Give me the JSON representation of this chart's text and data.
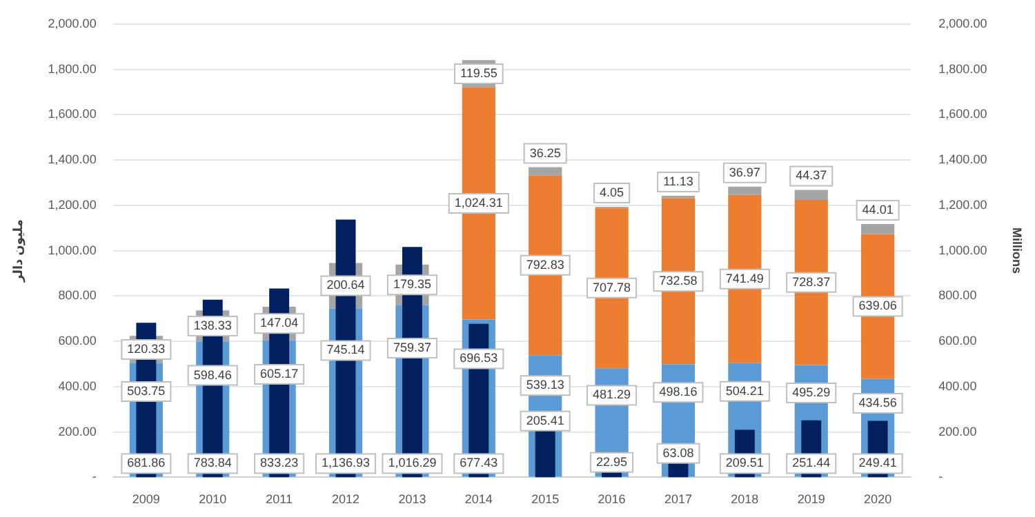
{
  "chart_data": {
    "type": "bar",
    "stacked": true,
    "ylabel": "ملیون دالر",
    "y2label": "Millions",
    "categories": [
      "2009",
      "2010",
      "2011",
      "2012",
      "2013",
      "2014",
      "2015",
      "2016",
      "2017",
      "2018",
      "2019",
      "2020"
    ],
    "series": [
      {
        "color": "#5b9bd5",
        "values": [
          503.75,
          598.46,
          605.17,
          745.14,
          759.37,
          696.53,
          539.13,
          481.29,
          498.16,
          504.21,
          495.29,
          434.56
        ],
        "value_labels": [
          "503.75",
          "598.46",
          "605.17",
          "745.14",
          "759.37",
          "696.53",
          "539.13",
          "481.29",
          "498.16",
          "504.21",
          "495.29",
          "434.56"
        ]
      },
      {
        "color": "#ed7d31",
        "values": [
          null,
          null,
          null,
          null,
          null,
          1024.31,
          792.83,
          707.78,
          732.58,
          741.49,
          728.37,
          639.06
        ],
        "value_labels": [
          null,
          null,
          null,
          null,
          null,
          "1,024.31",
          "792.83",
          "707.78",
          "732.58",
          "741.49",
          "728.37",
          "639.06"
        ]
      },
      {
        "color": "#a5a5a5",
        "values": [
          120.33,
          138.33,
          147.04,
          200.64,
          179.35,
          119.55,
          36.25,
          4.05,
          11.13,
          36.97,
          44.37,
          44.01
        ],
        "value_labels": [
          "120.33",
          "138.33",
          "147.04",
          "200.64",
          "179.35",
          "119.55",
          "36.25",
          "4.05",
          "11.13",
          "36.97",
          "44.37",
          "44.01"
        ]
      },
      {
        "axis": "y2",
        "color": "#002060",
        "values": [
          681.86,
          783.84,
          833.23,
          1136.93,
          1016.29,
          677.43,
          205.41,
          22.95,
          63.08,
          209.51,
          251.44,
          249.41
        ],
        "value_labels": [
          "681.86",
          "783.84",
          "833.23",
          "1,136.93",
          "1,016.29",
          "677.43",
          "205.41",
          "22.95",
          "63.08",
          "209.51",
          "251.44",
          "249.41"
        ]
      }
    ],
    "ylim": [
      0,
      2000
    ],
    "yticks": [
      {
        "value": 0,
        "label": "-"
      },
      {
        "value": 200,
        "label": "200.00"
      },
      {
        "value": 400,
        "label": "400.00"
      },
      {
        "value": 600,
        "label": "600.00"
      },
      {
        "value": 800,
        "label": "800.00"
      },
      {
        "value": 1000,
        "label": "1,000.00"
      },
      {
        "value": 1200,
        "label": "1,200.00"
      },
      {
        "value": 1400,
        "label": "1,400.00"
      },
      {
        "value": 1600,
        "label": "1,600.00"
      },
      {
        "value": 1800,
        "label": "1,800.00"
      },
      {
        "value": 2000,
        "label": "2,000.00"
      }
    ],
    "y2lim": [
      0,
      2000
    ],
    "y2ticks": [
      {
        "value": 0,
        "label": "-"
      },
      {
        "value": 200,
        "label": "200.00"
      },
      {
        "value": 400,
        "label": "400.00"
      },
      {
        "value": 600,
        "label": "600.00"
      },
      {
        "value": 800,
        "label": "800.00"
      },
      {
        "value": 1000,
        "label": "1,000.00"
      },
      {
        "value": 1200,
        "label": "1,200.00"
      },
      {
        "value": 1400,
        "label": "1,400.00"
      },
      {
        "value": 1600,
        "label": "1,600.00"
      },
      {
        "value": 1800,
        "label": "1,800.00"
      },
      {
        "value": 2000,
        "label": "2,000.00"
      }
    ],
    "grid": "y",
    "legend": false
  }
}
